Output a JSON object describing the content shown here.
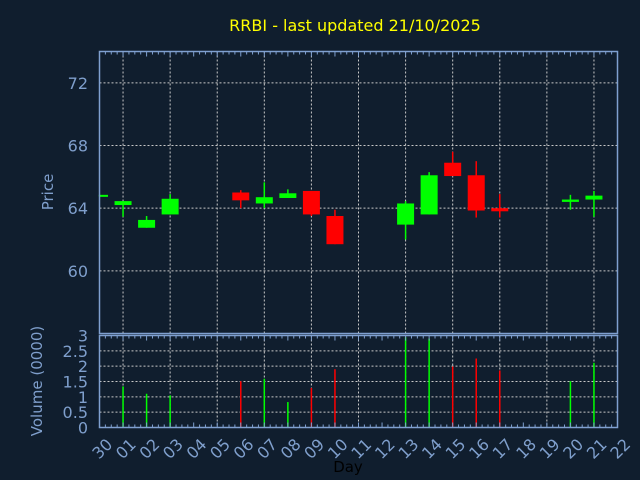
{
  "colors": {
    "background": "#101e2e",
    "axis": "#7fa0d0",
    "grid": "#c8c8c8",
    "up": "#00ff00",
    "down": "#ff0000",
    "title": "#ffff00"
  },
  "chart_data": {
    "type": "candlestick",
    "title": "RRBI - last updated 21/10/2025",
    "xlabel": "Day",
    "grid": true,
    "categories": [
      "30",
      "01",
      "02",
      "03",
      "04",
      "05",
      "06",
      "07",
      "08",
      "09",
      "10",
      "11",
      "12",
      "13",
      "14",
      "15",
      "16",
      "17",
      "18",
      "19",
      "20",
      "21",
      "22"
    ],
    "price": {
      "ylabel": "Price",
      "ylim": [
        56,
        74
      ],
      "yticks": [
        60,
        64,
        68,
        72
      ],
      "candles": [
        {
          "day": "30",
          "open": 64.75,
          "high": 64.85,
          "low": 64.75,
          "close": 64.85
        },
        {
          "day": "01",
          "open": 64.2,
          "high": 64.45,
          "low": 63.45,
          "close": 64.45
        },
        {
          "day": "02",
          "open": 62.75,
          "high": 63.5,
          "low": 62.75,
          "close": 63.25
        },
        {
          "day": "03",
          "open": 63.6,
          "high": 64.9,
          "low": 63.6,
          "close": 64.6
        },
        {
          "day": "06",
          "open": 65.0,
          "high": 65.15,
          "low": 64.0,
          "close": 64.5
        },
        {
          "day": "07",
          "open": 64.3,
          "high": 65.65,
          "low": 64.0,
          "close": 64.7
        },
        {
          "day": "08",
          "open": 64.65,
          "high": 65.2,
          "low": 64.65,
          "close": 64.95
        },
        {
          "day": "09",
          "open": 65.1,
          "high": 65.1,
          "low": 63.5,
          "close": 63.6
        },
        {
          "day": "10",
          "open": 63.5,
          "high": 63.9,
          "low": 61.7,
          "close": 61.7
        },
        {
          "day": "13",
          "open": 62.95,
          "high": 64.45,
          "low": 62.0,
          "close": 64.3
        },
        {
          "day": "14",
          "open": 63.6,
          "high": 66.3,
          "low": 63.6,
          "close": 66.1
        },
        {
          "day": "15",
          "open": 66.9,
          "high": 67.6,
          "low": 66.05,
          "close": 66.05
        },
        {
          "day": "16",
          "open": 66.1,
          "high": 67.0,
          "low": 63.4,
          "close": 63.85
        },
        {
          "day": "17",
          "open": 64.0,
          "high": 64.9,
          "low": 63.4,
          "close": 63.8
        },
        {
          "day": "20",
          "open": 64.4,
          "high": 64.85,
          "low": 63.9,
          "close": 64.55
        },
        {
          "day": "21",
          "open": 64.55,
          "high": 65.1,
          "low": 63.45,
          "close": 64.8
        }
      ]
    },
    "volume": {
      "ylabel": "Volume (0000)",
      "ylim": [
        0,
        3
      ],
      "yticks": [
        0,
        0.5,
        1,
        1.5,
        2,
        2.5,
        3
      ],
      "bars": [
        {
          "day": "01",
          "value": 1.34,
          "direction": "up"
        },
        {
          "day": "02",
          "value": 1.1,
          "direction": "up"
        },
        {
          "day": "03",
          "value": 1.05,
          "direction": "up"
        },
        {
          "day": "06",
          "value": 1.51,
          "direction": "down"
        },
        {
          "day": "07",
          "value": 1.59,
          "direction": "up"
        },
        {
          "day": "08",
          "value": 0.83,
          "direction": "up"
        },
        {
          "day": "09",
          "value": 1.29,
          "direction": "down"
        },
        {
          "day": "10",
          "value": 1.9,
          "direction": "down"
        },
        {
          "day": "13",
          "value": 2.95,
          "direction": "up"
        },
        {
          "day": "14",
          "value": 2.9,
          "direction": "up"
        },
        {
          "day": "15",
          "value": 1.99,
          "direction": "down"
        },
        {
          "day": "16",
          "value": 2.25,
          "direction": "down"
        },
        {
          "day": "17",
          "value": 1.86,
          "direction": "down"
        },
        {
          "day": "20",
          "value": 1.51,
          "direction": "up"
        },
        {
          "day": "21",
          "value": 2.11,
          "direction": "up"
        }
      ]
    }
  }
}
